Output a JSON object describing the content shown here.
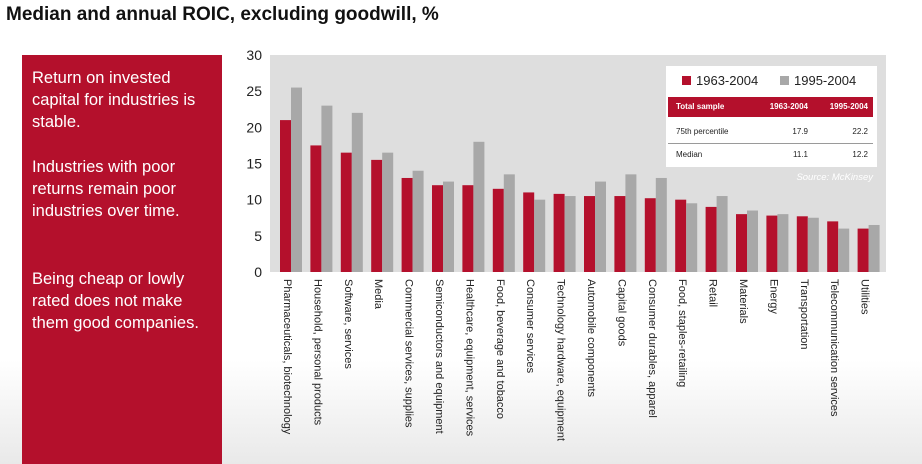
{
  "title": "Median and annual ROIC, excluding goodwill, %",
  "side_panel": {
    "points": [
      "Return on invested capital for industries is stable.",
      "Industries with poor returns remain poor industries over time.",
      "Being cheap or lowly rated does not make them good companies."
    ]
  },
  "legend": {
    "series_a": "1963-2004",
    "series_b": "1995-2004"
  },
  "summary_table": {
    "headers": [
      "Total sample",
      "1963-2004",
      "1995-2004"
    ],
    "rows": [
      [
        "75th percentile",
        "17.9",
        "22.2"
      ],
      [
        "Median",
        "11.1",
        "12.2"
      ]
    ]
  },
  "source": "Source: McKinsey",
  "colors": {
    "series_a": "#b4102c",
    "series_b": "#a8a8a8",
    "plot_bg": "#dedede",
    "panel_bg": "#b4102c"
  },
  "chart_data": {
    "type": "bar",
    "ylim": [
      0,
      30
    ],
    "yticks": [
      0,
      5,
      10,
      15,
      20,
      25,
      30
    ],
    "grid": false,
    "legend_position": "top-right",
    "categories": [
      "Pharmaceuticals, biotechnology",
      "Household, personal products",
      "Software, services",
      "Media",
      "Commercial services, supplies",
      "Semiconductors and equipment",
      "Healthcare, equipment, services",
      "Food, beverage and tobacco",
      "Consumer services",
      "Technology hardware, equipment",
      "Automobile components",
      "Capital goods",
      "Consumer durables, apparel",
      "Food, staples-retailing",
      "Retail",
      "Materials",
      "Energy",
      "Transportation",
      "Telecommunication services",
      "Utilities"
    ],
    "series": [
      {
        "name": "1963-2004",
        "values": [
          21,
          17.5,
          16.5,
          15.5,
          13,
          12,
          12,
          11.5,
          11,
          10.8,
          10.5,
          10.5,
          10.2,
          10,
          9,
          8,
          7.8,
          7.7,
          7,
          6
        ]
      },
      {
        "name": "1995-2004",
        "values": [
          25.5,
          23,
          22,
          16.5,
          14,
          12.5,
          18,
          13.5,
          10,
          10.5,
          12.5,
          13.5,
          13,
          9.5,
          10.5,
          8.5,
          8,
          7.5,
          6,
          6.5
        ]
      }
    ]
  }
}
